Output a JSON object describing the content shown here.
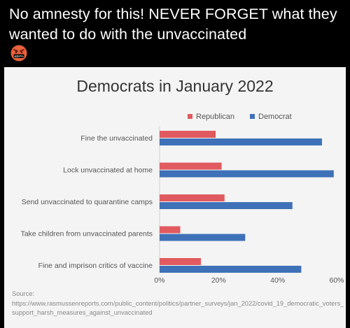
{
  "post": {
    "text": "No amnesty for this! NEVER FORGET what they wanted to do with the unvaccinated",
    "emoji_label": "&$!#%"
  },
  "chart_data": {
    "type": "bar",
    "orientation": "horizontal",
    "title": "Democrats in January 2022",
    "categories": [
      "Fine the unvaccinated",
      "Lock unvaccinated at home",
      "Send unvaccinated to quarantine camps",
      "Take children from unvaccinated parents",
      "Fine and imprison critics of vaccine"
    ],
    "series": [
      {
        "name": "Republican",
        "color": "#e05a5f",
        "values": [
          19,
          21,
          22,
          7,
          14
        ]
      },
      {
        "name": "Democrat",
        "color": "#3e71b8",
        "values": [
          55,
          59,
          45,
          29,
          48
        ]
      }
    ],
    "xlim": [
      0,
      60
    ],
    "xticks": [
      "0%",
      "20%",
      "40%",
      "60%"
    ],
    "legend": "top-right",
    "grid": false
  },
  "source": {
    "label": "Source:",
    "url": "https://www.rasmussenreports.com/public_content/politics/partner_surveys/jan_2022/covid_19_democratic_voters_support_harsh_measures_against_unvaccinated"
  }
}
